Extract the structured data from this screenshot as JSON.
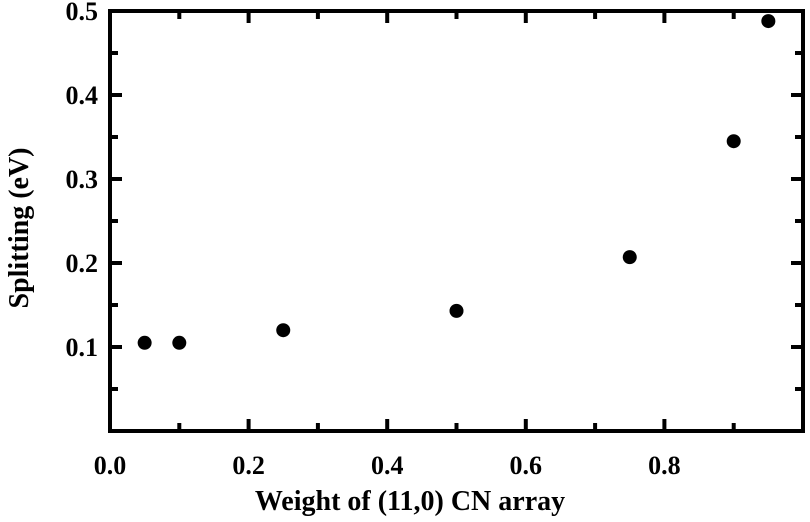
{
  "chart_data": {
    "type": "scatter",
    "title": "",
    "xlabel": "Weight of (11,0) CN array",
    "ylabel": "Splitting (eV)",
    "xlim": [
      0.0,
      1.0
    ],
    "ylim": [
      0.0,
      0.5
    ],
    "x_ticks": [
      0.0,
      0.2,
      0.4,
      0.6,
      0.8
    ],
    "x_tick_labels": [
      "0.0",
      "0.2",
      "0.4",
      "0.6",
      "0.8"
    ],
    "y_ticks": [
      0.1,
      0.2,
      0.3,
      0.4,
      0.5
    ],
    "y_tick_labels": [
      "0.1",
      "0.2",
      "0.3",
      "0.4",
      "0.5"
    ],
    "x_minor_step": 0.1,
    "y_minor_step": 0.05,
    "grid": false,
    "legend": "none",
    "marker_color": "#000000",
    "series": [
      {
        "x": [
          0.05,
          0.1,
          0.25,
          0.5,
          0.75,
          0.9,
          0.95
        ],
        "y": [
          0.105,
          0.105,
          0.12,
          0.143,
          0.207,
          0.345,
          0.488
        ]
      }
    ]
  }
}
